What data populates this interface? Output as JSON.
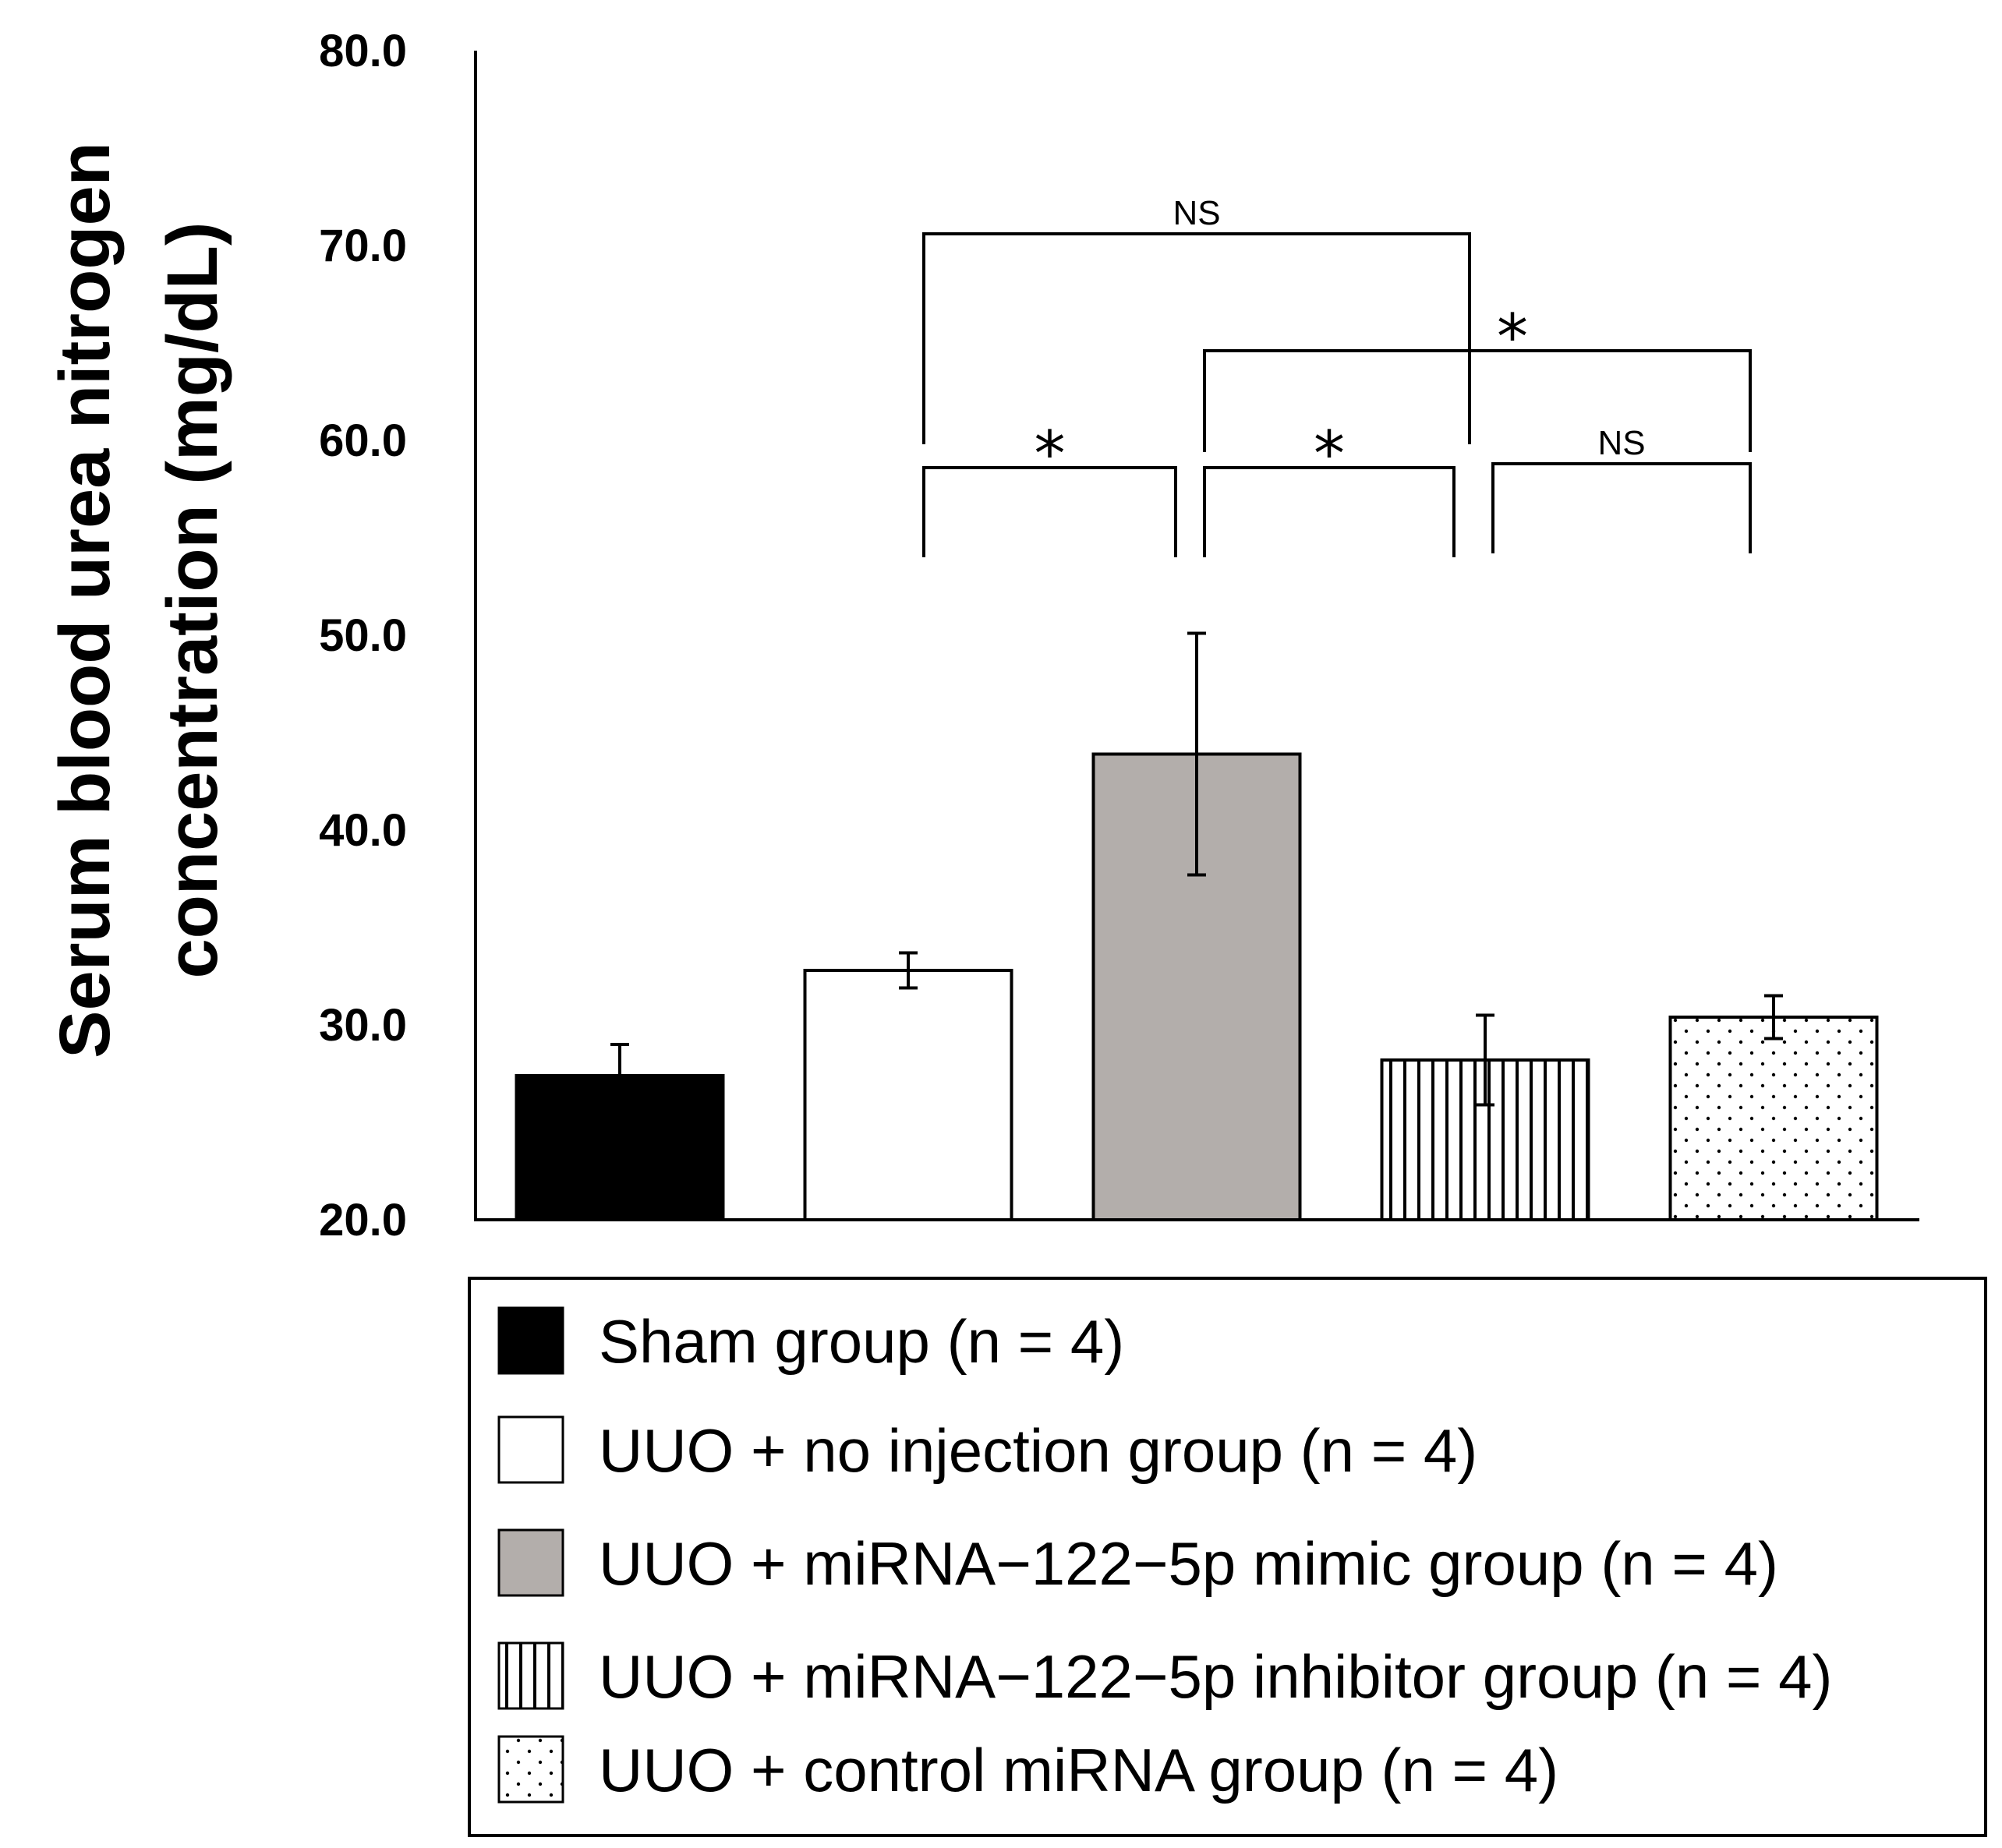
{
  "chart_data": {
    "type": "bar",
    "ylabel_lines": [
      "Serum blood urea nitrogen",
      "concentration (mg/dL)"
    ],
    "ylim": [
      20,
      80
    ],
    "yticks": [
      "20.0",
      "30.0",
      "40.0",
      "50.0",
      "60.0",
      "70.0",
      "80.0"
    ],
    "grid": false,
    "legend_position": "bottom",
    "series": [
      {
        "name": "Sham group (n = 4)",
        "value": 27.4,
        "error": 1.6,
        "fill": "#000000",
        "pattern": "solid"
      },
      {
        "name": "UUO + no injection group (n = 4)",
        "value": 32.8,
        "error": 0.9,
        "fill": "#ffffff",
        "pattern": "solid"
      },
      {
        "name": "UUO + miRNA−122−5p mimic group (n = 4)",
        "value": 43.9,
        "error": 6.2,
        "fill": "#b3aeab",
        "pattern": "solid"
      },
      {
        "name": "UUO + miRNA−122−5p inhibitor group (n = 4)",
        "value": 28.2,
        "error": 2.3,
        "fill": "#ffffff",
        "pattern": "vertical-lines"
      },
      {
        "name": "UUO + control miRNA group (n = 4)",
        "value": 30.4,
        "error": 1.1,
        "fill": "#ffffff",
        "pattern": "dots"
      }
    ],
    "significance": [
      {
        "from": 1,
        "to": 3,
        "label": "NS",
        "level": 70.6
      },
      {
        "from": 2,
        "to": 4,
        "label": "*",
        "level": 64.6
      },
      {
        "from": 1,
        "to": 2,
        "label": "*",
        "level": 58.6
      },
      {
        "from": 2,
        "to": 3,
        "label": "*",
        "level": 58.6
      },
      {
        "from": 3,
        "to": 4,
        "label": "NS",
        "level": 58.8
      }
    ]
  }
}
